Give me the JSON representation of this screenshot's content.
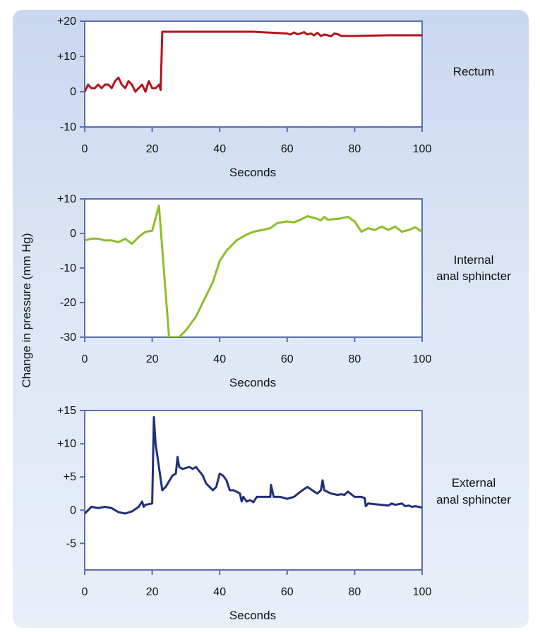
{
  "ylabel": "Change in pressure (mm Hg)",
  "colors": {
    "frame": "#5b6fb0",
    "background": "#d6e1f3"
  },
  "chart_data": [
    {
      "type": "line",
      "name": "Rectum",
      "label_lines": [
        "Rectum"
      ],
      "xlabel": "Seconds",
      "xlim": [
        0,
        100
      ],
      "ylim": [
        -10,
        20
      ],
      "xticks": [
        0,
        20,
        40,
        60,
        80,
        100
      ],
      "xtick_labels": [
        "0",
        "20",
        "40",
        "60",
        "80",
        "100"
      ],
      "yticks": [
        20,
        10,
        0,
        -10
      ],
      "ytick_labels": [
        "+20",
        "+10",
        "0",
        "-10"
      ],
      "color": "#b5121b",
      "series": [
        {
          "x": [
            0,
            1,
            2,
            3,
            4,
            5,
            6,
            7,
            8,
            9,
            10,
            11,
            12,
            13,
            14,
            15,
            16,
            17,
            18,
            19,
            20,
            21,
            22,
            22.5,
            23,
            30,
            40,
            50,
            60,
            61,
            62,
            63,
            64,
            65,
            66,
            67,
            68,
            69,
            70,
            71,
            72,
            73,
            74,
            75,
            76,
            77,
            80,
            90,
            100
          ],
          "y": [
            0,
            2,
            1,
            1,
            2,
            1,
            2,
            2,
            1,
            3,
            4,
            2,
            1,
            3,
            2,
            0,
            1,
            2,
            0,
            3,
            1,
            1,
            2,
            0.5,
            17,
            17,
            17,
            17,
            16.5,
            16.2,
            16.8,
            16.3,
            16.5,
            16.9,
            16.2,
            16.5,
            16.0,
            16.7,
            15.8,
            16.2,
            16.0,
            15.7,
            16.5,
            16.3,
            15.8,
            15.8,
            15.8,
            16,
            16
          ]
        }
      ]
    },
    {
      "type": "line",
      "name": "Internal anal sphincter",
      "label_lines": [
        "Internal",
        "anal sphincter"
      ],
      "xlabel": "Seconds",
      "xlim": [
        0,
        100
      ],
      "ylim": [
        -30,
        10
      ],
      "xticks": [
        0,
        20,
        40,
        60,
        80,
        100
      ],
      "xtick_labels": [
        "0",
        "20",
        "40",
        "60",
        "80",
        "100"
      ],
      "yticks": [
        10,
        0,
        -10,
        -20,
        -30
      ],
      "ytick_labels": [
        "+10",
        "0",
        "-10",
        "-20",
        "-30"
      ],
      "color": "#8dbd2a",
      "series": [
        {
          "x": [
            0,
            2,
            4,
            6,
            8,
            10,
            12,
            14,
            16,
            18,
            20,
            22,
            25,
            28,
            30,
            33,
            35,
            37,
            38,
            40,
            42,
            45,
            48,
            50,
            55,
            57,
            60,
            62,
            64,
            66,
            68,
            70,
            71,
            72,
            75,
            78,
            80,
            82,
            84,
            86,
            88,
            90,
            92,
            94,
            96,
            98,
            100
          ],
          "y": [
            -2,
            -1.5,
            -1.5,
            -2,
            -2,
            -2.5,
            -1.5,
            -3,
            -1,
            0.5,
            0.8,
            8,
            -30,
            -30,
            -28,
            -24,
            -20,
            -16,
            -14,
            -8,
            -5,
            -2,
            -0.3,
            0.5,
            1.5,
            3,
            3.5,
            3.2,
            4,
            5,
            4.5,
            3.8,
            4.8,
            4,
            4.2,
            4.8,
            3.5,
            0.5,
            1.5,
            1,
            2,
            1,
            2,
            0.5,
            1,
            1.8,
            0.5
          ]
        }
      ]
    },
    {
      "type": "line",
      "name": "External anal sphincter",
      "label_lines": [
        "External",
        "anal sphincter"
      ],
      "xlabel": "Seconds",
      "xlim": [
        0,
        100
      ],
      "ylim": [
        -9,
        15
      ],
      "xticks": [
        0,
        20,
        40,
        60,
        80,
        100
      ],
      "xtick_labels": [
        "0",
        "20",
        "40",
        "60",
        "80",
        "100"
      ],
      "yticks": [
        15,
        10,
        5,
        0,
        -5
      ],
      "ytick_labels": [
        "+15",
        "+10",
        "+5",
        "0",
        "-5"
      ],
      "color": "#1f2f7a",
      "series": [
        {
          "x": [
            0,
            2,
            4,
            6,
            8,
            10,
            12,
            14,
            16,
            17,
            17.5,
            18,
            20,
            20.5,
            21,
            23,
            24,
            26,
            27,
            27.5,
            28,
            29,
            31,
            32,
            33,
            35,
            36,
            38,
            39,
            40,
            41,
            42,
            43,
            44,
            45,
            46,
            46.5,
            47,
            48,
            49,
            50,
            51,
            52,
            54,
            55,
            55.2,
            56,
            58,
            60,
            62,
            64,
            66,
            68,
            69,
            70,
            70.5,
            71,
            73,
            75,
            76,
            77,
            78,
            80,
            82,
            83,
            83.3,
            84,
            86,
            88,
            90,
            91,
            92,
            94,
            95,
            96,
            97,
            98,
            100
          ],
          "y": [
            -0.5,
            0.5,
            0.3,
            0.5,
            0.3,
            -0.3,
            -0.5,
            -0.2,
            0.5,
            1.3,
            0.5,
            0.8,
            1,
            14,
            10,
            3,
            3.5,
            5.2,
            5.5,
            8,
            6.5,
            6.2,
            6.5,
            6.2,
            6.5,
            5.2,
            4,
            3,
            3.5,
            5.5,
            5.2,
            4.5,
            3,
            3,
            2.8,
            2.5,
            1.3,
            2,
            1.3,
            1.5,
            1.2,
            2,
            2,
            2,
            2,
            3.8,
            2,
            2,
            1.7,
            2,
            2.8,
            3.5,
            2.8,
            2.5,
            3,
            4.5,
            3,
            2.5,
            2.3,
            2.4,
            2.3,
            2.8,
            2,
            2,
            1.8,
            0.6,
            1,
            0.9,
            0.8,
            0.7,
            1,
            0.8,
            1,
            0.6,
            0.7,
            0.5,
            0.6,
            0.4
          ]
        }
      ]
    }
  ]
}
